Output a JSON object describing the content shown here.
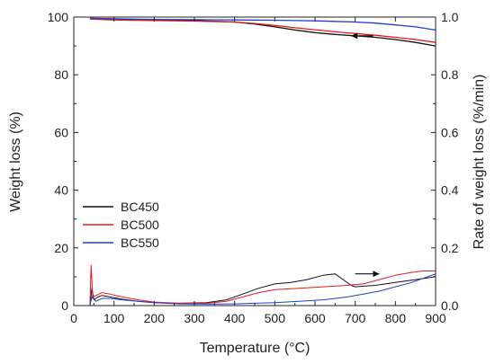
{
  "chart_data": {
    "type": "line",
    "xlabel": "Temperature (°C)",
    "ylabel_left": "Weight loss (%)",
    "ylabel_right": "Rate of weight loss (%/min)",
    "xlim": [
      0,
      900
    ],
    "ylim_left": [
      0,
      100
    ],
    "ylim_right": [
      0,
      1.0
    ],
    "x_ticks": [
      0,
      100,
      200,
      300,
      400,
      500,
      600,
      700,
      800,
      900
    ],
    "y_left_ticks": [
      0,
      20,
      40,
      60,
      80,
      100
    ],
    "y_right_ticks": [
      "0.0",
      "0.2",
      "0.4",
      "0.6",
      "0.8",
      "1.0"
    ],
    "legend_position": "left-middle",
    "grid": false,
    "series": [
      {
        "name": "BC450",
        "color": "#111111",
        "weight_loss": {
          "x": [
            40,
            100,
            200,
            300,
            400,
            450,
            500,
            550,
            600,
            650,
            700,
            750,
            800,
            850,
            900
          ],
          "y": [
            99.5,
            99.3,
            99.0,
            98.8,
            98.3,
            97.6,
            96.6,
            95.5,
            94.6,
            94.0,
            93.5,
            93.0,
            92.2,
            91.2,
            90.0
          ]
        },
        "rate": {
          "x": [
            40,
            45,
            50,
            60,
            70,
            90,
            120,
            160,
            200,
            260,
            330,
            380,
            420,
            460,
            500,
            540,
            580,
            620,
            650,
            670,
            690,
            700,
            750,
            800,
            850,
            900
          ],
          "y": [
            0.0,
            0.06,
            0.02,
            0.03,
            0.035,
            0.03,
            0.022,
            0.015,
            0.01,
            0.008,
            0.01,
            0.02,
            0.04,
            0.06,
            0.075,
            0.08,
            0.09,
            0.105,
            0.11,
            0.09,
            0.07,
            0.065,
            0.07,
            0.08,
            0.09,
            0.1
          ]
        }
      },
      {
        "name": "BC500",
        "color": "#e31a1c",
        "weight_loss": {
          "x": [
            40,
            100,
            200,
            300,
            400,
            450,
            500,
            550,
            600,
            650,
            700,
            750,
            800,
            850,
            900
          ],
          "y": [
            99.3,
            99.0,
            98.8,
            98.6,
            98.3,
            97.8,
            97.1,
            96.3,
            95.6,
            94.9,
            94.3,
            93.7,
            93.0,
            92.2,
            91.2
          ]
        },
        "rate": {
          "x": [
            40,
            43,
            47,
            55,
            70,
            90,
            120,
            160,
            200,
            260,
            330,
            380,
            420,
            460,
            500,
            560,
            620,
            680,
            720,
            760,
            800,
            840,
            870,
            900
          ],
          "y": [
            0.0,
            0.14,
            0.03,
            0.035,
            0.045,
            0.04,
            0.03,
            0.02,
            0.012,
            0.008,
            0.008,
            0.015,
            0.03,
            0.045,
            0.055,
            0.06,
            0.065,
            0.07,
            0.075,
            0.09,
            0.105,
            0.115,
            0.12,
            0.12
          ]
        }
      },
      {
        "name": "BC550",
        "color": "#1f3fd6",
        "weight_loss": {
          "x": [
            40,
            100,
            200,
            300,
            400,
            500,
            550,
            600,
            650,
            700,
            750,
            800,
            850,
            900
          ],
          "y": [
            99.6,
            99.4,
            99.2,
            99.1,
            99.0,
            98.9,
            98.8,
            98.7,
            98.5,
            98.3,
            97.9,
            97.3,
            96.6,
            95.5
          ]
        },
        "rate": {
          "x": [
            40,
            45,
            55,
            70,
            90,
            120,
            160,
            200,
            260,
            330,
            400,
            450,
            500,
            560,
            620,
            680,
            720,
            760,
            800,
            840,
            870,
            900
          ],
          "y": [
            0.0,
            0.03,
            0.015,
            0.025,
            0.025,
            0.02,
            0.015,
            0.01,
            0.006,
            0.005,
            0.006,
            0.008,
            0.01,
            0.015,
            0.02,
            0.03,
            0.04,
            0.05,
            0.065,
            0.08,
            0.095,
            0.11
          ]
        }
      }
    ],
    "annotations": [
      {
        "type": "arrow",
        "direction": "left",
        "x_from": 745,
        "x_to": 690,
        "y": 93.5,
        "axis": "left"
      },
      {
        "type": "arrow",
        "direction": "right",
        "x_from": 700,
        "x_to": 760,
        "y": 0.11,
        "axis": "right"
      }
    ]
  }
}
